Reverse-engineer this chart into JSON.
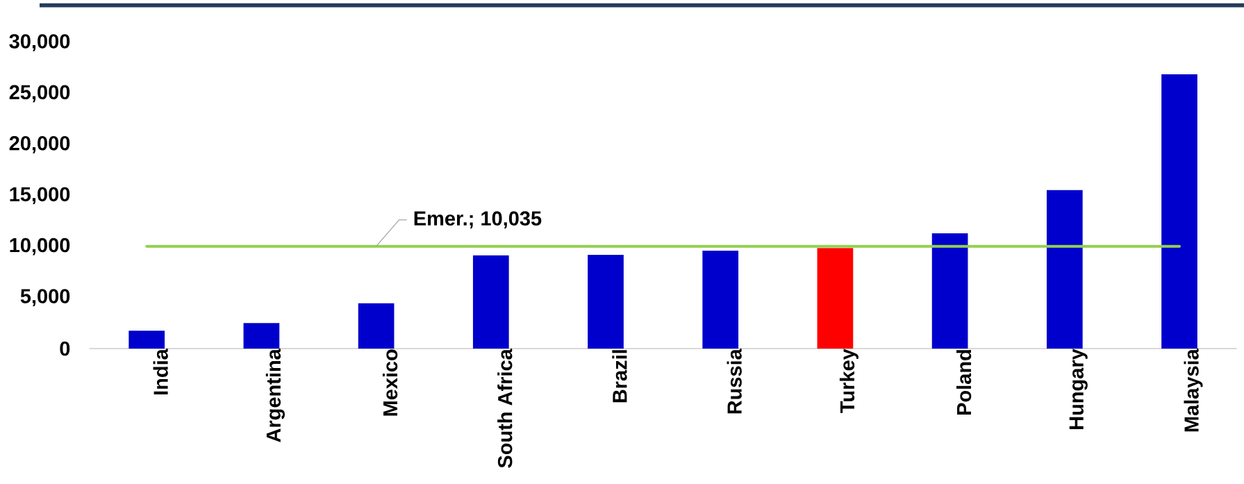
{
  "chart_data": {
    "type": "bar",
    "categories": [
      "India",
      "Argentina",
      "Mexico",
      "South Africa",
      "Brazil",
      "Russia",
      "Turkey",
      "Poland",
      "Hungary",
      "Malaysia"
    ],
    "values": [
      1750,
      2500,
      4450,
      9150,
      9200,
      9600,
      9850,
      11300,
      15550,
      26900
    ],
    "colors": [
      "#0000cc",
      "#0000cc",
      "#0000cc",
      "#0000cc",
      "#0000cc",
      "#0000cc",
      "#ff0000",
      "#0000cc",
      "#0000cc",
      "#0000cc"
    ],
    "ylim": [
      0,
      30000
    ],
    "yticks": [
      0,
      {
        "value": 5000,
        "label": "5,000"
      },
      {
        "value": 10000,
        "label": "10,000"
      },
      {
        "value": 15000,
        "label": "15,000"
      },
      {
        "value": 20000,
        "label": "20,000"
      },
      {
        "value": 25000,
        "label": "25,000"
      },
      {
        "value": 30000,
        "label": "30,000"
      }
    ],
    "ref_lines": [
      {
        "axis": "y",
        "value": 10035,
        "label": "Emer.; 10,035",
        "color": "#92d050"
      }
    ]
  }
}
